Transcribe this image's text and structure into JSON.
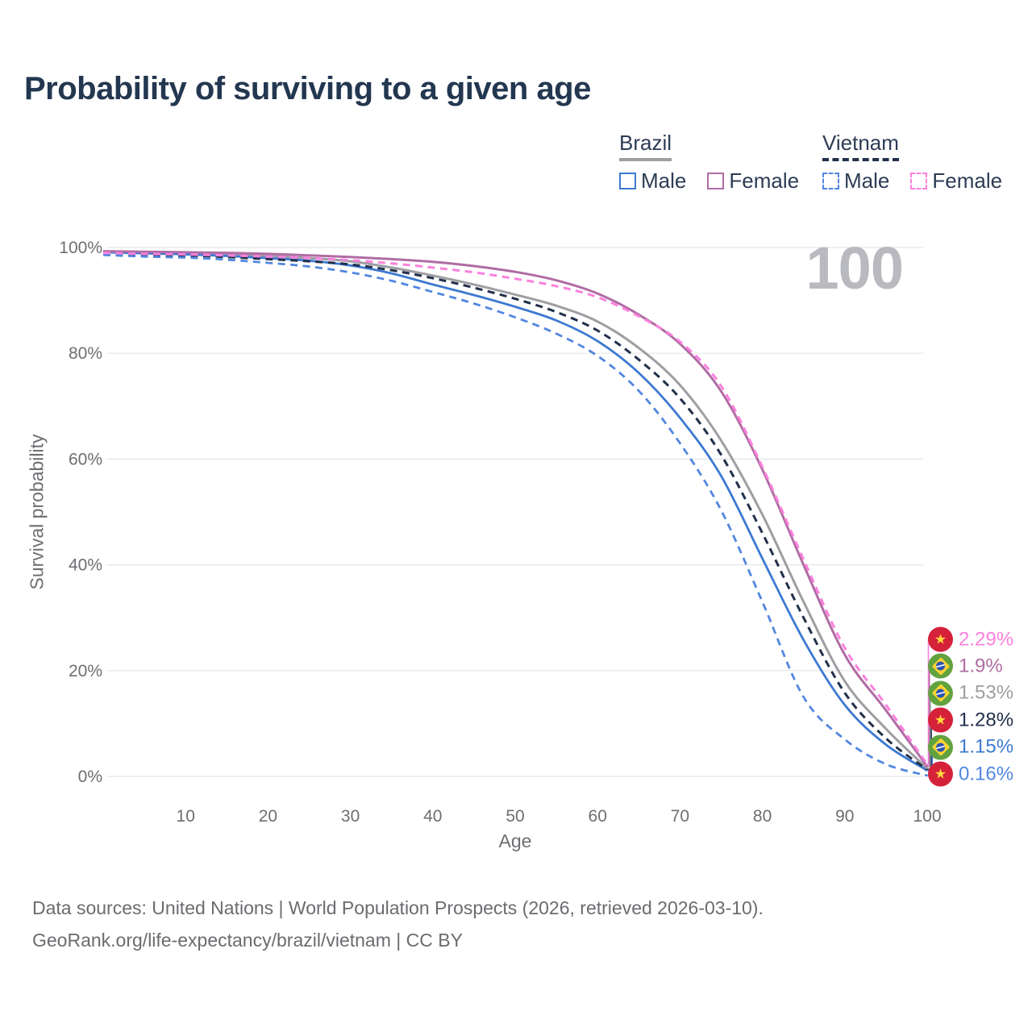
{
  "page": {
    "title": "Probability of surviving to a given age"
  },
  "legend": {
    "groups": [
      {
        "label": "Brazil",
        "underline_series": "brazil_total",
        "items": [
          {
            "label": "Male",
            "series": "brazil_male"
          },
          {
            "label": "Female",
            "series": "brazil_female"
          }
        ]
      },
      {
        "label": "Vietnam",
        "underline_series": "vietnam_total",
        "items": [
          {
            "label": "Male",
            "series": "vietnam_male"
          },
          {
            "label": "Female",
            "series": "vietnam_female"
          }
        ]
      }
    ]
  },
  "chart_data": {
    "type": "line",
    "title": "Probability of surviving to a given age",
    "xlabel": "Age",
    "ylabel": "Survival probability",
    "xlim": [
      0,
      100
    ],
    "ylim": [
      0,
      100
    ],
    "grid": "horizontal",
    "legend_position": "top-right",
    "annotation": "100",
    "x_ticks": [
      10,
      20,
      30,
      40,
      50,
      60,
      70,
      80,
      90,
      100
    ],
    "y_ticks": [
      {
        "v": 0,
        "label": "0%"
      },
      {
        "v": 20,
        "label": "20%"
      },
      {
        "v": 40,
        "label": "40%"
      },
      {
        "v": 60,
        "label": "60%"
      },
      {
        "v": 80,
        "label": "80%"
      },
      {
        "v": 100,
        "label": "100%"
      }
    ],
    "age_start": 0,
    "age_step": 5,
    "series": [
      {
        "id": "brazil_total",
        "country": "Brazil",
        "color": "#9e9ea3",
        "dashed": false,
        "width": 3,
        "values": [
          99.2,
          99.0,
          98.9,
          98.7,
          98.4,
          98.0,
          97.4,
          96.2,
          94.7,
          93.0,
          91.1,
          89.0,
          86.0,
          81.0,
          74.0,
          63.5,
          49.5,
          33.0,
          18.0,
          9.0,
          1.53
        ]
      },
      {
        "id": "brazil_male",
        "country": "Brazil",
        "color": "#3d79d1",
        "dashed": false,
        "width": 2.8,
        "values": [
          99.1,
          98.9,
          98.7,
          98.4,
          98.0,
          97.5,
          96.6,
          95.1,
          93.0,
          91.0,
          88.8,
          86.2,
          82.3,
          76.3,
          67.8,
          56.8,
          41.2,
          25.8,
          13.5,
          6.0,
          1.15
        ]
      },
      {
        "id": "brazil_female",
        "country": "Brazil",
        "color": "#b06ca4",
        "dashed": false,
        "width": 3,
        "values": [
          99.3,
          99.2,
          99.1,
          99.0,
          98.8,
          98.5,
          98.2,
          97.8,
          97.3,
          96.5,
          95.4,
          93.8,
          91.3,
          87.3,
          81.8,
          72.8,
          58.0,
          40.0,
          23.0,
          12.5,
          1.9
        ]
      },
      {
        "id": "vietnam_total",
        "country": "Vietnam",
        "color": "#22304b",
        "dashed": true,
        "width": 3,
        "values": [
          98.9,
          98.6,
          98.5,
          98.2,
          97.8,
          97.4,
          96.8,
          95.7,
          94.2,
          92.4,
          90.3,
          87.8,
          84.3,
          78.8,
          71.5,
          60.8,
          46.0,
          30.0,
          15.8,
          7.2,
          1.28
        ]
      },
      {
        "id": "vietnam_male",
        "country": "Vietnam",
        "color": "#5287e0",
        "dashed": true,
        "width": 2.8,
        "values": [
          98.6,
          98.3,
          98.1,
          97.7,
          97.1,
          96.4,
          95.3,
          93.7,
          91.6,
          89.4,
          86.8,
          83.7,
          79.5,
          72.9,
          63.0,
          50.3,
          33.0,
          15.0,
          7.0,
          2.3,
          0.16
        ]
      },
      {
        "id": "vietnam_female",
        "country": "Vietnam",
        "color": "#fb81dd",
        "dashed": true,
        "width": 3,
        "values": [
          99.0,
          98.8,
          98.7,
          98.5,
          98.3,
          98.0,
          97.6,
          97.0,
          96.2,
          95.3,
          94.1,
          92.7,
          90.6,
          87.0,
          82.2,
          73.8,
          58.5,
          41.0,
          24.3,
          13.5,
          2.29
        ]
      }
    ],
    "end_labels": [
      {
        "text": "2.29%",
        "series": "vietnam_female",
        "flag": "vietnam"
      },
      {
        "text": "1.9%",
        "series": "brazil_female",
        "flag": "brazil"
      },
      {
        "text": "1.53%",
        "series": "brazil_total",
        "flag": "brazil"
      },
      {
        "text": "1.28%",
        "series": "vietnam_total",
        "flag": "vietnam"
      },
      {
        "text": "1.15%",
        "series": "brazil_male",
        "flag": "brazil"
      },
      {
        "text": "0.16%",
        "series": "vietnam_male",
        "flag": "vietnam"
      }
    ]
  },
  "footer": {
    "line1": "Data sources: United Nations | World Population Prospects (2026, retrieved 2026-03-10).",
    "line2": "GeoRank.org/life-expectancy/brazil/vietnam | CC BY"
  }
}
